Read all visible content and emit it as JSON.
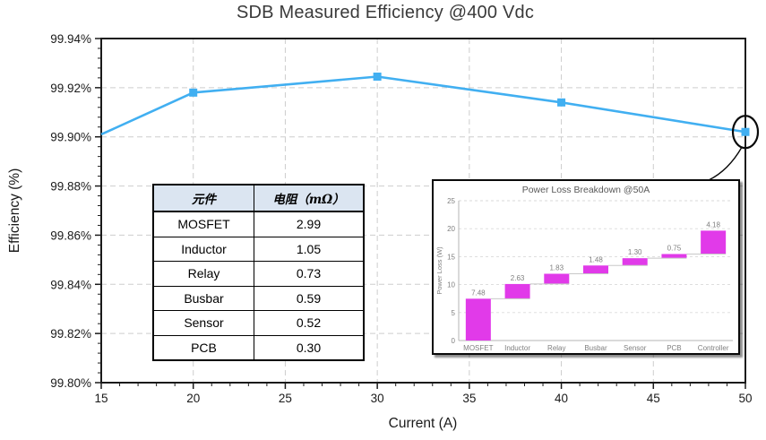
{
  "title": "SDB Measured Efficiency @400 Vdc",
  "chart_data": [
    {
      "id": "efficiency-line",
      "type": "line",
      "title": "SDB Measured Efficiency @400 Vdc",
      "xlabel": "Current (A)",
      "ylabel": "Efficiency (%)",
      "x": [
        15,
        20,
        30,
        40,
        50
      ],
      "y": [
        99.901,
        99.918,
        99.9245,
        99.914,
        99.902
      ],
      "markers": [
        false,
        true,
        true,
        true,
        true
      ],
      "xlim": [
        15,
        50
      ],
      "ylim": [
        99.8,
        99.94
      ],
      "x_ticks": [
        15,
        20,
        25,
        30,
        35,
        40,
        45,
        50
      ],
      "x_tick_labels": [
        "15",
        "20",
        "25",
        "30",
        "35",
        "40",
        "45",
        "50"
      ],
      "y_ticks": [
        99.8,
        99.82,
        99.84,
        99.86,
        99.88,
        99.9,
        99.92,
        99.94
      ],
      "y_tick_labels": [
        "99.80%",
        "99.82%",
        "99.84%",
        "99.86%",
        "99.88%",
        "99.90%",
        "99.92%",
        "99.94%"
      ],
      "x_minor_step": 1,
      "y_minor_step": 0.004,
      "grid": "dashed both",
      "line_color": "#41AFF1",
      "annotation": {
        "type": "circle-callout",
        "target_x": 50,
        "target_y": 99.902,
        "points_to": "power-loss-inset"
      }
    },
    {
      "id": "power-loss-waterfall",
      "type": "bar",
      "subtype": "waterfall",
      "title": "Power Loss Breakdown @50A",
      "xlabel": "",
      "ylabel": "Power Loss (W)",
      "categories": [
        "MOSFET",
        "Inductor",
        "Relay",
        "Busbar",
        "Sensor",
        "PCB",
        "Controller"
      ],
      "values": [
        7.48,
        2.63,
        1.83,
        1.48,
        1.3,
        0.75,
        4.18
      ],
      "value_labels": [
        "7.48",
        "2.63",
        "1.83",
        "1.48",
        "1.30",
        "0.75",
        "4.18"
      ],
      "ylim": [
        0,
        25
      ],
      "y_ticks": [
        0,
        5,
        10,
        15,
        20,
        25
      ],
      "grid": "dashed horizontal",
      "bar_color": "#E13AE9",
      "legend": "none"
    }
  ],
  "comp_table": {
    "headers": [
      "元件",
      "电阻（mΩ）"
    ],
    "rows": [
      [
        "MOSFET",
        "2.99"
      ],
      [
        "Inductor",
        "1.05"
      ],
      [
        "Relay",
        "0.73"
      ],
      [
        "Busbar",
        "0.59"
      ],
      [
        "Sensor",
        "0.52"
      ],
      [
        "PCB",
        "0.30"
      ]
    ]
  }
}
